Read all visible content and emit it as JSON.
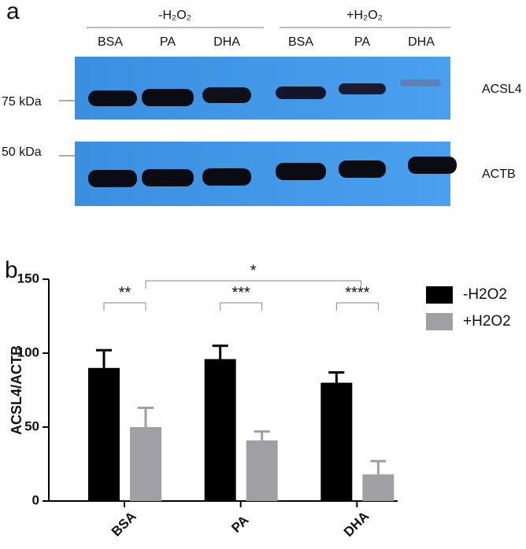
{
  "blot": {
    "panel_label": "a",
    "groups": [
      "-H₂O₂",
      "+H₂O₂"
    ],
    "lanes": [
      "BSA",
      "PA",
      "DHA",
      "BSA",
      "PA",
      "DHA"
    ],
    "markers": [
      "75 kDa",
      "50 kDa"
    ],
    "proteins": [
      "ACSL4",
      "ACTB"
    ]
  },
  "chart_data": {
    "type": "bar",
    "panel_label": "b",
    "y_label": "ACSL4/ACTB",
    "categories": [
      "BSA",
      "PA",
      "DHA"
    ],
    "series": [
      {
        "name": "-H2O2",
        "color": "#000000",
        "values": [
          90,
          96,
          80
        ],
        "errors": [
          12,
          9,
          7
        ]
      },
      {
        "name": "+H2O2",
        "color": "#a0a0a4",
        "values": [
          50,
          41,
          18
        ],
        "errors": [
          13,
          6,
          9
        ]
      }
    ],
    "ylim": [
      0,
      150
    ],
    "yticks": [
      0,
      50,
      100,
      150
    ],
    "annotations": [
      "**",
      "***",
      "****",
      "*"
    ]
  }
}
